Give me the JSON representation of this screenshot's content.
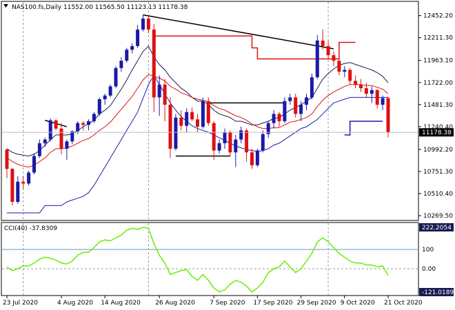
{
  "header": {
    "symbol_line": "NAS100.fs,Daily  11552.00 11565.50 11123.13 11178.38",
    "cci_line": "CCI(40) -37.8309"
  },
  "price_axis": {
    "ticks": [
      "12452.20",
      "12211.30",
      "11963.10",
      "11722.00",
      "11481.30",
      "11240.40",
      "10992.20",
      "10751.30",
      "10510.40",
      "10269.50"
    ],
    "tick_values": [
      12452.2,
      12211.3,
      11963.1,
      11722.0,
      11481.3,
      11240.4,
      10992.2,
      10751.3,
      10510.4,
      10269.5
    ],
    "last_price_label": "11178.38"
  },
  "cci_axis": {
    "ticks": [
      "222.2054",
      "100",
      "0.00",
      "-121.0189"
    ],
    "tick_values": [
      222.2054,
      100,
      0,
      -121.0189
    ]
  },
  "date_axis": {
    "labels": [
      "23 Jul 2020",
      "4 Aug 2020",
      "14 Aug 2020",
      "26 Aug 2020",
      "7 Sep 2020",
      "17 Sep 2020",
      "29 Sep 2020",
      "9 Oct 2020",
      "21 Oct 2020"
    ],
    "label_bar_index": [
      0,
      10,
      18,
      28,
      38,
      46,
      54,
      62,
      70
    ]
  },
  "colors": {
    "up": "#1a1aa8",
    "down": "#dd1111",
    "ema_fast": "#dd1111",
    "ema_slow": "#1a1aa8",
    "mid_line": "#1a1a50",
    "cci": "#66ee00",
    "trendline": "#000000",
    "resistance": "#dd1111",
    "support": "#1a1aa8",
    "grid": "#999999",
    "level100": "#6699bb"
  },
  "chart_data": {
    "type": "candlestick",
    "ohlc": [
      [
        10990,
        11000,
        10680,
        10780
      ],
      [
        10780,
        10790,
        10380,
        10420
      ],
      [
        10420,
        10700,
        10400,
        10640
      ],
      [
        10640,
        10700,
        10560,
        10620
      ],
      [
        10620,
        10760,
        10600,
        10740
      ],
      [
        10740,
        10950,
        10720,
        10920
      ],
      [
        10920,
        11100,
        10900,
        11060
      ],
      [
        11060,
        11120,
        11020,
        11100
      ],
      [
        11100,
        11330,
        11080,
        11310
      ],
      [
        11310,
        11320,
        11200,
        11220
      ],
      [
        11220,
        11280,
        10940,
        11000
      ],
      [
        11000,
        11100,
        10880,
        11080
      ],
      [
        11080,
        11200,
        11050,
        11190
      ],
      [
        11190,
        11300,
        11160,
        11280
      ],
      [
        11280,
        11300,
        11200,
        11260
      ],
      [
        11260,
        11320,
        11200,
        11300
      ],
      [
        11300,
        11400,
        11280,
        11380
      ],
      [
        11380,
        11560,
        11360,
        11540
      ],
      [
        11540,
        11600,
        11480,
        11580
      ],
      [
        11580,
        11700,
        11560,
        11680
      ],
      [
        11680,
        11900,
        11660,
        11880
      ],
      [
        11880,
        12000,
        11840,
        11960
      ],
      [
        11960,
        12100,
        11940,
        12080
      ],
      [
        12080,
        12150,
        12040,
        12120
      ],
      [
        12120,
        12350,
        12100,
        12300
      ],
      [
        12300,
        12460,
        12280,
        12420
      ],
      [
        12420,
        12460,
        12260,
        12300
      ],
      [
        12300,
        12360,
        11400,
        11560
      ],
      [
        11560,
        11800,
        11360,
        11700
      ],
      [
        11700,
        11760,
        11300,
        11480
      ],
      [
        11480,
        11560,
        10900,
        11000
      ],
      [
        11000,
        11380,
        10980,
        11340
      ],
      [
        11340,
        11420,
        11200,
        11250
      ],
      [
        11250,
        11440,
        11180,
        11400
      ],
      [
        11400,
        11450,
        11300,
        11320
      ],
      [
        11320,
        11380,
        11180,
        11240
      ],
      [
        11240,
        11560,
        11220,
        11520
      ],
      [
        11520,
        11560,
        11250,
        11280
      ],
      [
        11280,
        11300,
        10880,
        10980
      ],
      [
        10980,
        11100,
        10950,
        11060
      ],
      [
        11060,
        11220,
        11000,
        11180
      ],
      [
        11180,
        11200,
        10920,
        10960
      ],
      [
        10960,
        11150,
        10800,
        11100
      ],
      [
        11100,
        11240,
        11060,
        11200
      ],
      [
        11200,
        11220,
        10860,
        10960
      ],
      [
        10960,
        11000,
        10780,
        10820
      ],
      [
        10820,
        11000,
        10800,
        10980
      ],
      [
        10980,
        11200,
        10960,
        11160
      ],
      [
        11160,
        11300,
        11120,
        11280
      ],
      [
        11280,
        11420,
        11220,
        11380
      ],
      [
        11380,
        11400,
        11240,
        11300
      ],
      [
        11300,
        11560,
        11280,
        11520
      ],
      [
        11520,
        11600,
        11480,
        11560
      ],
      [
        11560,
        11600,
        11340,
        11380
      ],
      [
        11380,
        11520,
        11300,
        11480
      ],
      [
        11480,
        11600,
        11420,
        11560
      ],
      [
        11560,
        11820,
        11540,
        11780
      ],
      [
        11780,
        12240,
        11760,
        12180
      ],
      [
        12180,
        12300,
        12080,
        12120
      ],
      [
        12120,
        12180,
        11980,
        12020
      ],
      [
        12020,
        12060,
        11900,
        11960
      ],
      [
        11960,
        12000,
        11800,
        11840
      ],
      [
        11840,
        11900,
        11780,
        11860
      ],
      [
        11860,
        11880,
        11700,
        11740
      ],
      [
        11740,
        11800,
        11660,
        11700
      ],
      [
        11700,
        11760,
        11620,
        11660
      ],
      [
        11660,
        11720,
        11560,
        11600
      ],
      [
        11600,
        11680,
        11500,
        11640
      ],
      [
        11640,
        11650,
        11440,
        11480
      ],
      [
        11480,
        11580,
        11420,
        11552
      ],
      [
        11552,
        11565.5,
        11123.13,
        11178.38
      ]
    ],
    "ema_fast": [
      10900,
      10860,
      10830,
      10810,
      10800,
      10820,
      10860,
      10900,
      10960,
      11000,
      11000,
      11010,
      11030,
      11060,
      11090,
      11110,
      11150,
      11200,
      11240,
      11290,
      11360,
      11430,
      11500,
      11570,
      11660,
      11750,
      11810,
      11790,
      11770,
      11740,
      11680,
      11650,
      11610,
      11590,
      11560,
      11540,
      11530,
      11510,
      11470,
      11440,
      11420,
      11390,
      11360,
      11340,
      11310,
      11270,
      11240,
      11220,
      11220,
      11230,
      11230,
      11260,
      11290,
      11300,
      11320,
      11340,
      11380,
      11460,
      11530,
      11580,
      11620,
      11650,
      11680,
      11700,
      11700,
      11700,
      11690,
      11690,
      11670,
      11650,
      11600
    ],
    "ema_slow": [
      10300,
      10300,
      10300,
      10300,
      10300,
      10300,
      10300,
      10380,
      10380,
      10380,
      10380,
      10420,
      10440,
      10460,
      10480,
      10520,
      10600,
      10700,
      10800,
      10900,
      11000,
      11100,
      11200,
      11300,
      11400,
      11550,
      11700,
      11800,
      11700,
      11600,
      11500,
      11420,
      11350,
      11300,
      11250,
      11220,
      11200,
      11180,
      11150,
      11120,
      11090,
      11060,
      11030,
      11010,
      10990,
      10980,
      10970,
      10980,
      11000,
      11040,
      11060,
      11100,
      11140,
      11180,
      11220,
      11240,
      11280,
      11320,
      11380,
      11440,
      11500,
      11520,
      11540,
      11560,
      11560,
      11560,
      11560,
      11560,
      11560,
      11560,
      11560
    ],
    "mid_line": [
      11000,
      10960,
      10940,
      10930,
      10920,
      10940,
      10980,
      11040,
      11100,
      11150,
      11150,
      11150,
      11160,
      11200,
      11240,
      11270,
      11310,
      11380,
      11420,
      11470,
      11560,
      11650,
      11750,
      11860,
      11960,
      12060,
      12120,
      12000,
      11920,
      11860,
      11780,
      11720,
      11660,
      11620,
      11560,
      11520,
      11520,
      11480,
      11420,
      11380,
      11360,
      11340,
      11300,
      11300,
      11280,
      11260,
      11260,
      11280,
      11300,
      11330,
      11340,
      11380,
      11420,
      11450,
      11480,
      11520,
      11560,
      11660,
      11760,
      11820,
      11870,
      11910,
      11930,
      11940,
      11920,
      11900,
      11880,
      11860,
      11830,
      11790,
      11720
    ],
    "cci": [
      10,
      -10,
      0,
      15,
      15,
      30,
      50,
      60,
      55,
      45,
      30,
      25,
      40,
      70,
      85,
      85,
      110,
      140,
      150,
      145,
      160,
      175,
      200,
      210,
      205,
      215,
      210,
      130,
      70,
      30,
      -30,
      -20,
      -10,
      -5,
      -40,
      -60,
      -30,
      -60,
      -100,
      -120,
      -110,
      -80,
      -60,
      -70,
      -90,
      -120,
      -100,
      -70,
      -20,
      0,
      10,
      40,
      10,
      -20,
      0,
      40,
      80,
      140,
      160,
      140,
      110,
      80,
      60,
      40,
      30,
      30,
      20,
      20,
      10,
      15,
      -35
    ],
    "trendlines": [
      {
        "start": [
          7,
          11310
        ],
        "end": [
          11,
          11240
        ]
      },
      {
        "start": [
          25,
          12460
        ],
        "end": [
          60,
          12090
        ]
      },
      {
        "start": [
          31,
          10920
        ],
        "end": [
          41,
          10920
        ]
      },
      {
        "start": [
          37,
          11500
        ],
        "end": [
          51,
          11500
        ]
      }
    ],
    "resistance_steps": [
      [
        27,
        12230
      ],
      [
        43,
        12230
      ],
      [
        45,
        12100
      ],
      [
        46,
        11980
      ],
      [
        60,
        11980
      ],
      [
        61,
        12160
      ],
      [
        64,
        12160
      ]
    ],
    "support_steps": [
      [
        62,
        11150
      ],
      [
        63,
        11300
      ],
      [
        69,
        11300
      ]
    ],
    "price_range": [
      10225,
      12600
    ],
    "cci_range": [
      -121.0189,
      222.2054
    ],
    "vlines_at_bar": [
      3,
      26,
      59
    ],
    "cci_levels": [
      100,
      0
    ]
  }
}
